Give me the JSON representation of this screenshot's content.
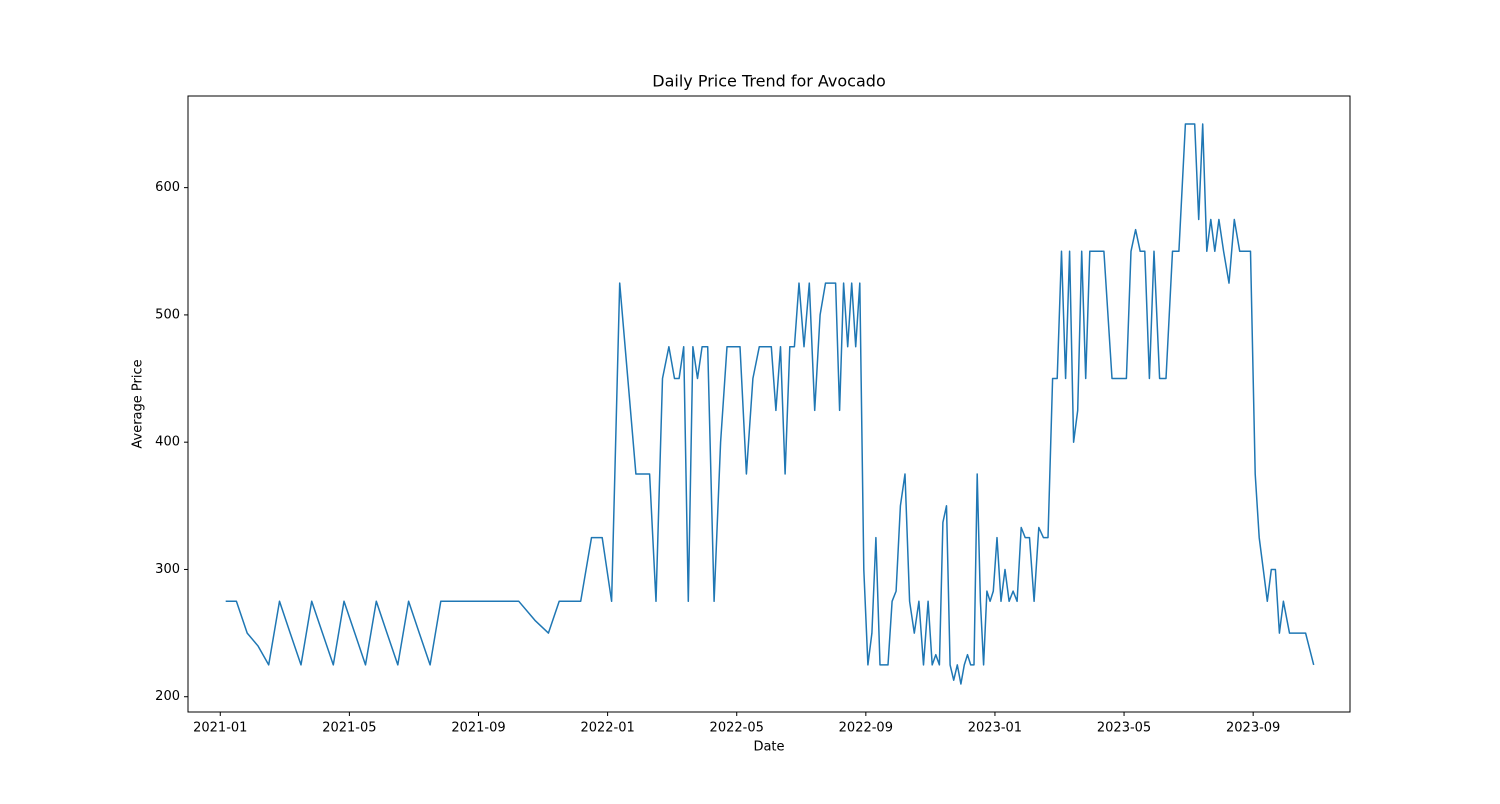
{
  "chart_data": {
    "type": "line",
    "title": "Daily Price Trend for Avocado",
    "x_label": "Date",
    "y_label": "Average Price",
    "xlim": [
      "2020-12",
      "2023-12"
    ],
    "xticks": [
      "2021-01",
      "2021-05",
      "2021-09",
      "2022-01",
      "2022-05",
      "2022-09",
      "2023-01",
      "2023-05",
      "2023-09"
    ],
    "ylim": [
      188,
      672
    ],
    "yticks": [
      200,
      300,
      400,
      500,
      600
    ],
    "grid": false,
    "x": [
      "2021-01",
      "2021-01",
      "2021-01",
      "2021-02",
      "2021-02",
      "2021-02",
      "2021-03",
      "2021-03",
      "2021-03",
      "2021-04",
      "2021-04",
      "2021-04",
      "2021-05",
      "2021-05",
      "2021-05",
      "2021-06",
      "2021-06",
      "2021-06",
      "2021-07",
      "2021-07",
      "2021-07",
      "2021-08",
      "2021-09",
      "2021-10",
      "2021-10",
      "2021-11",
      "2021-11",
      "2021-11",
      "2021-12",
      "2021-12",
      "2021-12",
      "2022-01",
      "2022-01",
      "2022-01",
      "2022-01",
      "2022-02",
      "2022-02",
      "2022-02",
      "2022-02",
      "2022-02",
      "2022-03",
      "2022-03",
      "2022-03",
      "2022-03",
      "2022-03",
      "2022-03",
      "2022-03",
      "2022-04",
      "2022-04",
      "2022-04",
      "2022-04",
      "2022-04",
      "2022-05",
      "2022-05",
      "2022-05",
      "2022-05",
      "2022-05",
      "2022-06",
      "2022-06",
      "2022-06",
      "2022-06",
      "2022-06",
      "2022-06",
      "2022-06",
      "2022-07",
      "2022-07",
      "2022-07",
      "2022-07",
      "2022-07",
      "2022-07",
      "2022-08",
      "2022-08",
      "2022-08",
      "2022-08",
      "2022-08",
      "2022-08",
      "2022-08",
      "2022-08",
      "2022-09",
      "2022-09",
      "2022-09",
      "2022-09",
      "2022-09",
      "2022-09",
      "2022-09",
      "2022-09",
      "2022-10",
      "2022-10",
      "2022-10",
      "2022-10",
      "2022-10",
      "2022-10",
      "2022-10",
      "2022-11",
      "2022-11",
      "2022-11",
      "2022-11",
      "2022-11",
      "2022-11",
      "2022-11",
      "2022-11",
      "2022-11",
      "2022-12",
      "2022-12",
      "2022-12",
      "2022-12",
      "2022-12",
      "2022-12",
      "2022-12",
      "2022-12",
      "2022-12",
      "2022-12",
      "2023-01",
      "2023-01",
      "2023-01",
      "2023-01",
      "2023-01",
      "2023-01",
      "2023-01",
      "2023-01",
      "2023-02",
      "2023-02",
      "2023-02",
      "2023-02",
      "2023-02",
      "2023-02",
      "2023-02",
      "2023-03",
      "2023-03",
      "2023-03",
      "2023-03",
      "2023-03",
      "2023-03",
      "2023-03",
      "2023-03",
      "2023-04",
      "2023-04",
      "2023-04",
      "2023-04",
      "2023-05",
      "2023-05",
      "2023-05",
      "2023-05",
      "2023-05",
      "2023-05",
      "2023-05",
      "2023-06",
      "2023-06",
      "2023-06",
      "2023-06",
      "2023-06",
      "2023-07",
      "2023-07",
      "2023-07",
      "2023-07",
      "2023-07",
      "2023-07",
      "2023-07",
      "2023-07",
      "2023-08",
      "2023-08",
      "2023-08",
      "2023-08",
      "2023-08",
      "2023-08",
      "2023-09",
      "2023-09",
      "2023-09",
      "2023-09",
      "2023-09",
      "2023-09",
      "2023-09",
      "2023-09",
      "2023-10",
      "2023-10",
      "2023-10",
      "2023-10"
    ],
    "series": [
      {
        "name": "Average Price",
        "color": "#1f77b4",
        "values": [
          275,
          275,
          250,
          240,
          225,
          275,
          250,
          225,
          275,
          250,
          225,
          275,
          250,
          225,
          275,
          250,
          225,
          275,
          250,
          225,
          275,
          275,
          275,
          275,
          260,
          250,
          275,
          275,
          275,
          325,
          325,
          275,
          525,
          450,
          375,
          375,
          375,
          275,
          450,
          475,
          450,
          450,
          475,
          275,
          475,
          450,
          475,
          475,
          275,
          400,
          475,
          475,
          475,
          375,
          450,
          475,
          475,
          475,
          425,
          475,
          375,
          475,
          475,
          525,
          475,
          525,
          425,
          500,
          525,
          525,
          525,
          425,
          525,
          475,
          525,
          475,
          525,
          300,
          225,
          250,
          325,
          225,
          225,
          225,
          275,
          283,
          350,
          375,
          275,
          250,
          275,
          225,
          275,
          225,
          233,
          225,
          337,
          350,
          225,
          213,
          225,
          210,
          225,
          233,
          225,
          225,
          375,
          275,
          225,
          283,
          275,
          283,
          325,
          275,
          300,
          275,
          283,
          275,
          333,
          325,
          325,
          275,
          333,
          325,
          325,
          450,
          450,
          550,
          450,
          550,
          400,
          425,
          550,
          450,
          550,
          550,
          550,
          450,
          450,
          450,
          550,
          567,
          550,
          550,
          450,
          550,
          450,
          450,
          550,
          550,
          650,
          650,
          650,
          575,
          650,
          550,
          575,
          550,
          575,
          550,
          525,
          575,
          550,
          550,
          550,
          375,
          325,
          300,
          275,
          300,
          300,
          250,
          275,
          250,
          250,
          250,
          225
        ]
      }
    ]
  }
}
